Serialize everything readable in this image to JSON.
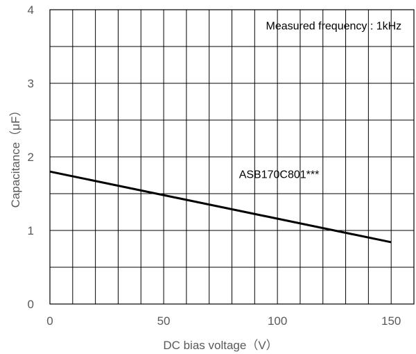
{
  "chart_data": {
    "type": "line",
    "title": "",
    "xlabel": "DC bias voltage（V）",
    "ylabel": "Capacitance（μF）",
    "xlim": [
      0,
      160
    ],
    "ylim": [
      0,
      4
    ],
    "x_ticks": [
      0,
      50,
      100,
      150
    ],
    "y_ticks": [
      0,
      1,
      2,
      3,
      4
    ],
    "grid": true,
    "series": [
      {
        "name": "ASB170C801***",
        "color": "#000000",
        "x": [
          0,
          150
        ],
        "y": [
          1.8,
          0.84
        ]
      }
    ],
    "annotations": [
      {
        "text": "Measured frequency : 1kHz",
        "x": 150,
        "y": 3.73
      },
      {
        "text": "ASB170C801***",
        "x": 105,
        "y": 1.71
      }
    ]
  }
}
